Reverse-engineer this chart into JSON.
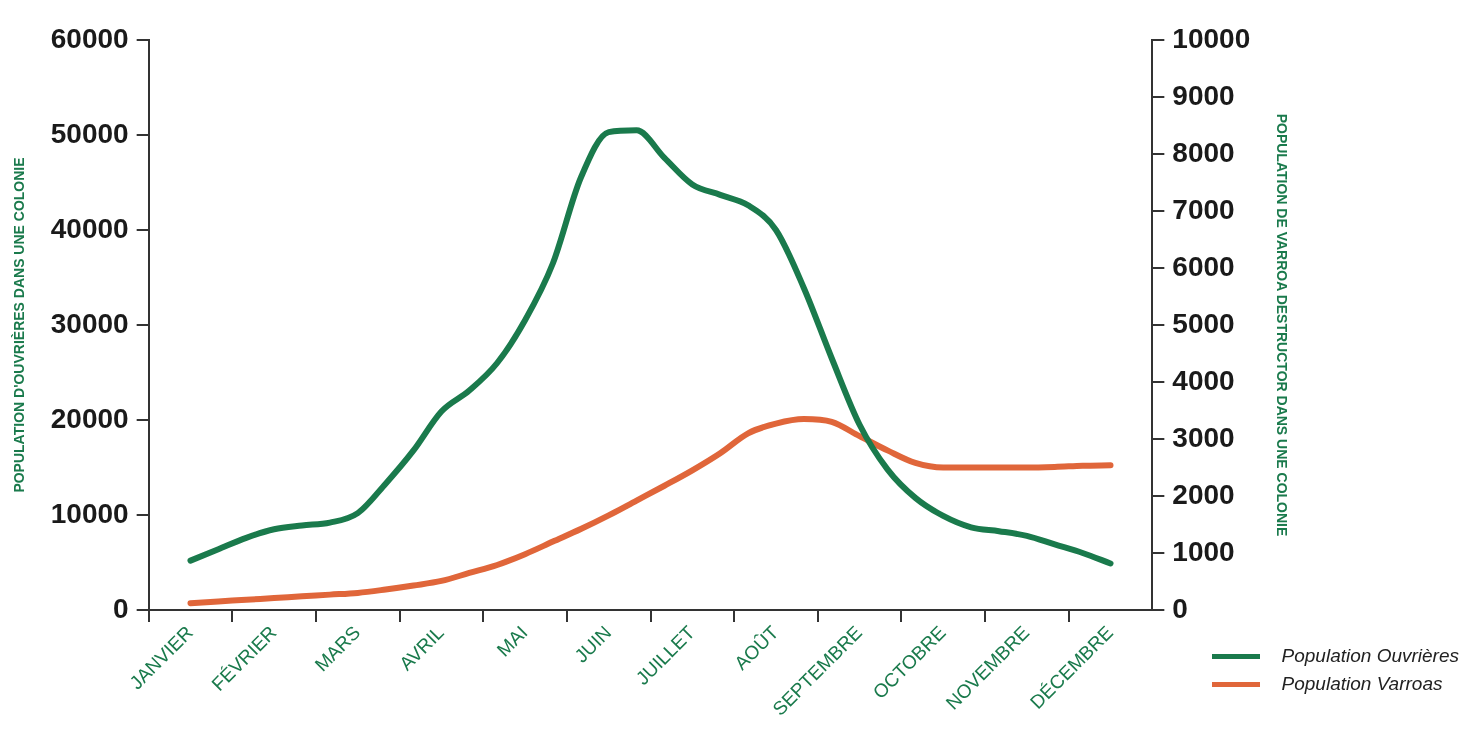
{
  "chart_data": {
    "type": "line",
    "ylabel": "POPULATION D'OUVRIÈRES DANS UNE COLONIE",
    "y2label": "POPULATION DE VARROA DESTRUCTOR DANS UNE COLONIE",
    "categories": [
      null,
      "JANVIER",
      null,
      null,
      "FÉVRIER",
      null,
      null,
      "MARS",
      null,
      null,
      "AVRIL",
      null,
      null,
      "MAI",
      null,
      null,
      "JUIN",
      null,
      null,
      "JUILLET",
      null,
      null,
      "AOÛT",
      null,
      null,
      "SEPTEMBRE",
      null,
      null,
      "OCTOBRE",
      null,
      null,
      "NOVEMBRE",
      null,
      null,
      "DÉCEMBRE",
      null
    ],
    "ylim": [
      0,
      60000
    ],
    "yticks": [
      0,
      10000,
      20000,
      30000,
      40000,
      50000,
      60000
    ],
    "y2lim": [
      0,
      10000
    ],
    "y2ticks": [
      0,
      1000,
      2000,
      3000,
      4000,
      5000,
      6000,
      7000,
      8000,
      9000,
      10000
    ],
    "series": [
      {
        "name": "Population Ouvrières",
        "color": "#1a7a4c",
        "values": [
          null,
          5200,
          6400,
          7600,
          8500,
          8900,
          9200,
          10200,
          13300,
          16800,
          20900,
          23100,
          26000,
          30500,
          36500,
          45500,
          50300,
          50500,
          47600,
          44800,
          43700,
          42600,
          40000,
          33900,
          26500,
          19500,
          14800,
          11800,
          9900,
          8700,
          8300,
          7800,
          6900,
          6000,
          4900,
          null
        ]
      },
      {
        "name": "Population Varroas",
        "color": "#e0663a",
        "axis": "y2",
        "values": [
          null,
          120,
          150,
          180,
          210,
          240,
          270,
          300,
          360,
          430,
          510,
          650,
          790,
          980,
          1200,
          1420,
          1660,
          1920,
          2180,
          2450,
          2750,
          3100,
          3270,
          3350,
          3300,
          3050,
          2800,
          2580,
          2500,
          2500,
          2500,
          2500,
          2510,
          2530,
          2540,
          null
        ]
      }
    ],
    "legend": "bottom right",
    "marker": "none",
    "line_style": "solid",
    "grid": false
  }
}
